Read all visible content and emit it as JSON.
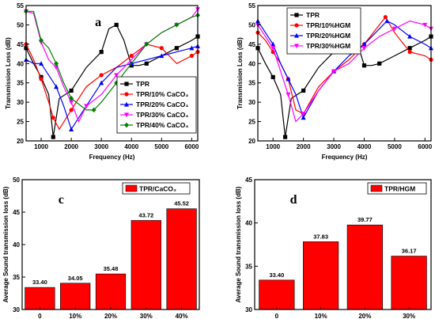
{
  "chart_data": [
    {
      "type": "line",
      "panel_label": "a",
      "xlabel": "Frequency (Hz)",
      "ylabel": "Transmission Loss (dB)",
      "xlim": [
        500,
        6200
      ],
      "ylim": [
        20,
        55
      ],
      "xticks": [
        1000,
        2000,
        3000,
        4000,
        5000,
        6000
      ],
      "yticks": [
        20,
        25,
        30,
        35,
        40,
        45,
        50,
        55
      ],
      "legend_position": "lower-right",
      "series": [
        {
          "name": "TPR",
          "color": "#000000",
          "marker": "square",
          "x": [
            500,
            750,
            1000,
            1250,
            1400,
            1600,
            2000,
            2500,
            3000,
            3250,
            3500,
            3750,
            4000,
            4250,
            4500,
            5000,
            5500,
            6000,
            6200
          ],
          "y": [
            44,
            40,
            36.5,
            32,
            21,
            31,
            33,
            39,
            43,
            49,
            50,
            46,
            39.5,
            39.5,
            40,
            42,
            44,
            46,
            47
          ]
        },
        {
          "name": "TPR/10% CaCO₃",
          "color": "#ff0000",
          "marker": "circle",
          "x": [
            500,
            750,
            1000,
            1250,
            1400,
            1600,
            2000,
            2500,
            3000,
            3500,
            4000,
            4500,
            5000,
            5500,
            6000,
            6200
          ],
          "y": [
            45,
            41,
            36,
            30,
            26,
            23,
            28,
            34,
            37,
            39,
            42,
            45,
            44,
            40,
            42,
            43
          ]
        },
        {
          "name": "TPR/20% CaCO₃",
          "color": "#0000ff",
          "marker": "triangle-up",
          "x": [
            500,
            750,
            1000,
            1250,
            1500,
            1750,
            2000,
            2500,
            3000,
            3500,
            4000,
            4500,
            5000,
            5500,
            6000,
            6200
          ],
          "y": [
            41,
            40,
            40,
            37,
            34,
            29,
            23,
            29,
            35,
            39,
            40,
            41,
            42,
            43,
            44,
            44.5
          ]
        },
        {
          "name": "TPR/30% CaCO₃",
          "color": "#ff00ff",
          "marker": "triangle-down",
          "x": [
            500,
            750,
            1000,
            1250,
            1500,
            1750,
            2000,
            2250,
            2500,
            3000,
            3500,
            4000,
            4500,
            5000,
            5500,
            6000,
            6200
          ],
          "y": [
            53.5,
            53,
            45.5,
            41,
            39,
            34,
            30,
            25,
            29,
            32,
            37,
            41,
            45,
            48,
            50,
            52,
            54
          ]
        },
        {
          "name": "TPR/40% CaCO₃",
          "color": "#008000",
          "marker": "diamond",
          "x": [
            500,
            750,
            1000,
            1250,
            1500,
            1750,
            2000,
            2500,
            2750,
            3000,
            3500,
            4000,
            4500,
            5000,
            5500,
            6000,
            6200
          ],
          "y": [
            53.5,
            53.5,
            46,
            44,
            40,
            35,
            31,
            28,
            28,
            30,
            35,
            40,
            45,
            48,
            50,
            52,
            52.5
          ]
        }
      ]
    },
    {
      "type": "line",
      "panel_label": "b",
      "xlabel": "Frequency (Hz)",
      "ylabel": "Transmission Loss (dB)",
      "xlim": [
        500,
        6200
      ],
      "ylim": [
        20,
        55
      ],
      "xticks": [
        1000,
        2000,
        3000,
        4000,
        5000,
        6000
      ],
      "yticks": [
        20,
        25,
        30,
        35,
        40,
        45,
        50,
        55
      ],
      "legend_position": "top-center",
      "series": [
        {
          "name": "TPR",
          "color": "#000000",
          "marker": "square",
          "x": [
            500,
            750,
            1000,
            1250,
            1400,
            1600,
            2000,
            2500,
            3000,
            3250,
            3500,
            3750,
            4000,
            4250,
            4500,
            5000,
            5500,
            6000,
            6200
          ],
          "y": [
            44,
            40,
            36.5,
            32,
            21,
            31,
            33,
            39,
            43,
            49,
            50,
            46,
            39.5,
            39.5,
            40,
            42,
            44,
            46,
            47
          ]
        },
        {
          "name": "TPR/10%HGM",
          "color": "#ff0000",
          "marker": "circle",
          "x": [
            500,
            750,
            1000,
            1250,
            1500,
            1750,
            2000,
            2500,
            3000,
            3500,
            4000,
            4500,
            4700,
            5000,
            5500,
            6000,
            6200
          ],
          "y": [
            48,
            46,
            43,
            40,
            36,
            28,
            27,
            34,
            38,
            41,
            45,
            50,
            52,
            48,
            43,
            42,
            41
          ]
        },
        {
          "name": "TPR/20%HGM",
          "color": "#0000ff",
          "marker": "triangle-up",
          "x": [
            500,
            750,
            1000,
            1250,
            1500,
            1750,
            2000,
            2500,
            3000,
            3500,
            4000,
            4500,
            4750,
            5000,
            5500,
            6000,
            6200
          ],
          "y": [
            51,
            48,
            45,
            40,
            36,
            32,
            26,
            33,
            38,
            42,
            45,
            49,
            51,
            50,
            47,
            45,
            44
          ]
        },
        {
          "name": "TPR/30%HGM",
          "color": "#ff00ff",
          "marker": "triangle-down",
          "x": [
            500,
            750,
            1000,
            1250,
            1500,
            1750,
            2000,
            2500,
            3000,
            3500,
            4000,
            4500,
            5000,
            5500,
            6000,
            6200
          ],
          "y": [
            50,
            47,
            44,
            38,
            32,
            25,
            27,
            33,
            38,
            40,
            44,
            47,
            49,
            51,
            50,
            49
          ]
        }
      ]
    },
    {
      "type": "bar",
      "panel_label": "c",
      "legend": "TPR/CaCO₃",
      "legend_position": "top-left",
      "ylabel": "Average Sound transmission loss (dB)",
      "categories": [
        "0",
        "10%",
        "20%",
        "30%",
        "40%"
      ],
      "values": [
        33.4,
        34.05,
        35.48,
        43.72,
        45.52
      ],
      "value_labels": [
        "33.40",
        "34.05",
        "35.48",
        "43.72",
        "45.52"
      ],
      "ylim": [
        30,
        50
      ],
      "yticks": [
        30,
        35,
        40,
        45,
        50
      ],
      "bar_color": "#ff0000"
    },
    {
      "type": "bar",
      "panel_label": "d",
      "legend": "TPR/HGM",
      "legend_position": "top-right",
      "ylabel": "Average Sound transmission loss (dB)",
      "categories": [
        "0",
        "10%",
        "20%",
        "30%"
      ],
      "values": [
        33.4,
        37.83,
        39.77,
        36.17
      ],
      "value_labels": [
        "33.40",
        "37.83",
        "39.77",
        "36.17"
      ],
      "ylim": [
        30,
        45
      ],
      "yticks": [
        30,
        35,
        40,
        45
      ],
      "bar_color": "#ff0000"
    }
  ]
}
